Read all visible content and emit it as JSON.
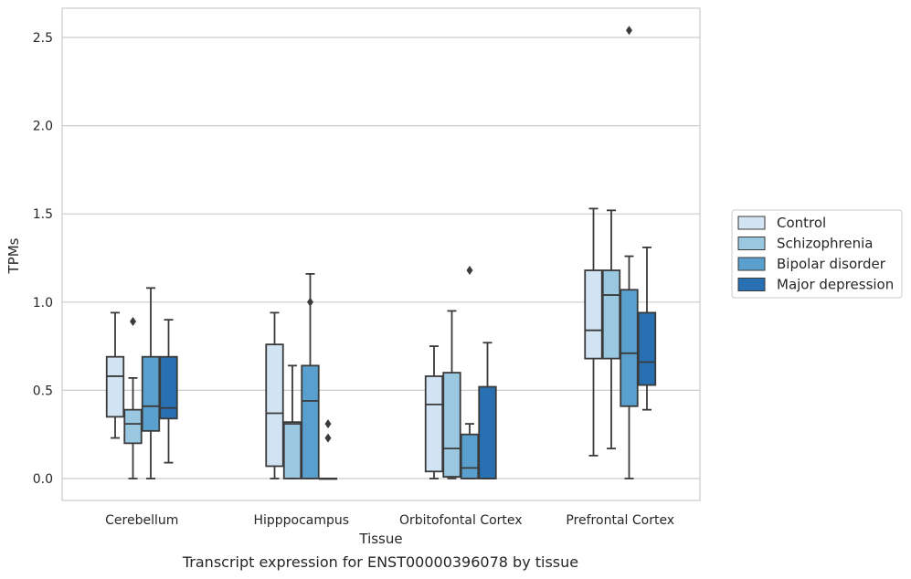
{
  "caption": "Transcript expression for ENST00000396078 by tissue",
  "chart_data": {
    "type": "box",
    "xlabel": "Tissue",
    "ylabel": "TPMs",
    "ylim": [
      -0.12,
      2.67
    ],
    "yticks": [
      "0.0",
      "0.5",
      "1.0",
      "1.5",
      "2.0",
      "2.5"
    ],
    "grid": "horizontal",
    "legend_placement": "right",
    "categories": [
      "Cerebellum",
      "Hipppocampus",
      "Orbitofontal Cortex",
      "Prefrontal Cortex"
    ],
    "series": [
      {
        "name": "Control",
        "color": "#d2e3f3",
        "boxes": [
          {
            "whislo": 0.23,
            "q1": 0.35,
            "med": 0.58,
            "q3": 0.69,
            "whishi": 0.94,
            "fliers": []
          },
          {
            "whislo": 0.0,
            "q1": 0.07,
            "med": 0.37,
            "q3": 0.76,
            "whishi": 0.94,
            "fliers": []
          },
          {
            "whislo": 0.0,
            "q1": 0.04,
            "med": 0.42,
            "q3": 0.58,
            "whishi": 0.75,
            "fliers": []
          },
          {
            "whislo": 0.13,
            "q1": 0.68,
            "med": 0.84,
            "q3": 1.18,
            "whishi": 1.53,
            "fliers": []
          }
        ]
      },
      {
        "name": "Schizophrenia",
        "color": "#9ac8e0",
        "boxes": [
          {
            "whislo": 0.0,
            "q1": 0.2,
            "med": 0.31,
            "q3": 0.39,
            "whishi": 0.57,
            "fliers": [
              0.89
            ]
          },
          {
            "whislo": 0.0,
            "q1": 0.0,
            "med": 0.31,
            "q3": 0.32,
            "whishi": 0.64,
            "fliers": []
          },
          {
            "whislo": 0.0,
            "q1": 0.01,
            "med": 0.17,
            "q3": 0.6,
            "whishi": 0.95,
            "fliers": []
          },
          {
            "whislo": 0.17,
            "q1": 0.68,
            "med": 1.04,
            "q3": 1.18,
            "whishi": 1.52,
            "fliers": []
          }
        ]
      },
      {
        "name": "Bipolar disorder",
        "color": "#5aa0ce",
        "boxes": [
          {
            "whislo": 0.0,
            "q1": 0.27,
            "med": 0.41,
            "q3": 0.69,
            "whishi": 1.08,
            "fliers": []
          },
          {
            "whislo": 0.0,
            "q1": 0.0,
            "med": 0.44,
            "q3": 0.64,
            "whishi": 1.16,
            "fliers": [
              1.0
            ]
          },
          {
            "whislo": 0.0,
            "q1": 0.0,
            "med": 0.06,
            "q3": 0.25,
            "whishi": 0.31,
            "fliers": [
              1.18
            ]
          },
          {
            "whislo": 0.0,
            "q1": 0.41,
            "med": 0.71,
            "q3": 1.07,
            "whishi": 1.26,
            "fliers": [
              2.54
            ]
          }
        ]
      },
      {
        "name": "Major depression",
        "color": "#2870b1",
        "boxes": [
          {
            "whislo": 0.09,
            "q1": 0.34,
            "med": 0.4,
            "q3": 0.69,
            "whishi": 0.9,
            "fliers": []
          },
          {
            "whislo": 0.0,
            "q1": 0.0,
            "med": 0.0,
            "q3": 0.0,
            "whishi": 0.0,
            "fliers": [
              0.31,
              0.23
            ]
          },
          {
            "whislo": 0.0,
            "q1": 0.0,
            "med": 0.0,
            "q3": 0.52,
            "whishi": 0.77,
            "fliers": []
          },
          {
            "whislo": 0.39,
            "q1": 0.53,
            "med": 0.66,
            "q3": 0.94,
            "whishi": 1.31,
            "fliers": []
          }
        ]
      }
    ]
  }
}
